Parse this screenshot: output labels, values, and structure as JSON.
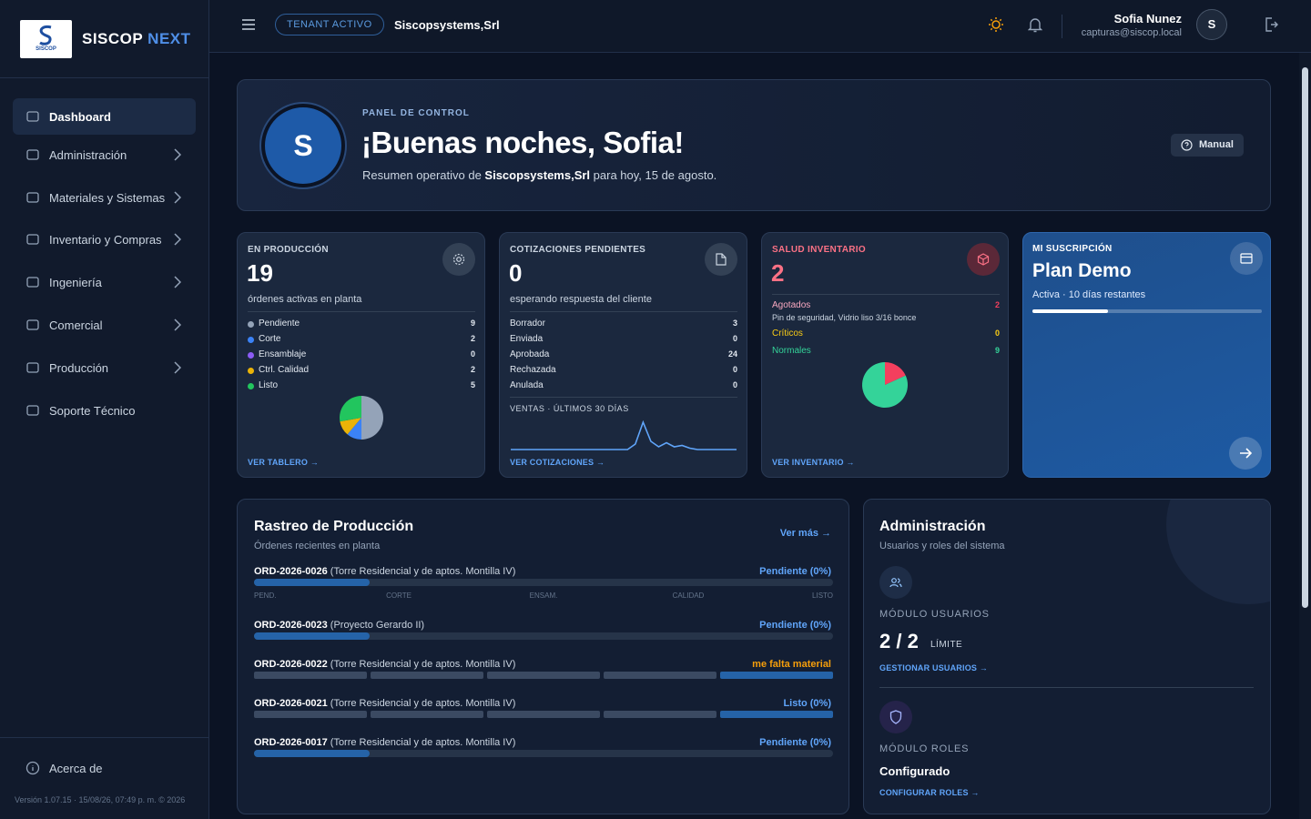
{
  "sidebar": {
    "logo_text": "SISCOP",
    "brand": "SISCOP",
    "brand_accent": "NEXT",
    "nav": [
      "Dashboard",
      "Administración",
      "Materiales y Sistemas",
      "Inventario y Compras",
      "Ingeniería",
      "Comercial",
      "Producción",
      "Soporte Técnico"
    ],
    "about": "Acerca de",
    "version": "Versión 1.07.15 · 15/08/26, 07:49 p. m. © 2026"
  },
  "topbar": {
    "tenant_badge": "TENANT ACTIVO",
    "tenant": "Siscopsystems,Srl",
    "user_name": "Sofia Nunez",
    "user_email": "capturas@siscop.local",
    "avatar": "S"
  },
  "hero": {
    "avatar": "S",
    "eyebrow": "PANEL DE CONTROL",
    "title": "¡Buenas noches, Sofia!",
    "summary_prefix": "Resumen operativo de ",
    "summary_company": "Siscopsystems,Srl",
    "summary_suffix": " para hoy, 15 de agosto.",
    "manual": "Manual"
  },
  "cards": [
    {
      "label": "EN PRODUCCIÓN",
      "value": 19,
      "caption": "órdenes activas en planta",
      "breakdown": [
        {
          "label": "Pendiente",
          "value": 9,
          "color": "#94a3b8"
        },
        {
          "label": "Corte",
          "value": 2,
          "color": "#3b82f6"
        },
        {
          "label": "Ensamblaje",
          "value": 0,
          "color": "#8b5cf6"
        },
        {
          "label": "Ctrl. Calidad",
          "value": 2,
          "color": "#eab308"
        },
        {
          "label": "Listo",
          "value": 5,
          "color": "#22c55e"
        }
      ],
      "link": "VER TABLERO →"
    },
    {
      "label": "COTIZACIONES PENDIENTES",
      "value": 0,
      "caption": "esperando respuesta del cliente",
      "breakdown": [
        {
          "label": "Borrador",
          "value": 3
        },
        {
          "label": "Enviada",
          "value": 0
        },
        {
          "label": "Aprobada",
          "value": 24
        },
        {
          "label": "Rechazada",
          "value": 0
        },
        {
          "label": "Anulada",
          "value": 0
        }
      ],
      "sales_label": "VENTAS · ÚLTIMOS 30 DÍAS",
      "sales_trend": [
        0,
        0,
        0,
        0,
        0,
        0,
        0,
        0,
        0,
        0,
        0,
        0,
        0,
        0,
        0,
        0,
        0.2,
        1,
        0.3,
        0.1,
        0.25,
        0.1,
        0.15,
        0.05,
        0,
        0,
        0,
        0,
        0,
        0
      ],
      "link": "VER COTIZACIONES →"
    },
    {
      "label": "SALUD INVENTARIO",
      "value": 2,
      "breakdown": [
        {
          "label": "Agotados",
          "value": 2,
          "color": "#f43f5e",
          "note": "Pin de seguridad, Vidrio liso 3/16 bonce"
        },
        {
          "label": "Críticos",
          "value": 0,
          "color": "#facc15"
        },
        {
          "label": "Normales",
          "value": 9,
          "color": "#34d399"
        }
      ],
      "link": "VER INVENTARIO →"
    },
    {
      "label": "MI SUSCRIPCIÓN",
      "plan": "Plan Demo",
      "status": "Activa · 10 días restantes",
      "progress": 33
    }
  ],
  "tracking": {
    "title": "Rastreo de Producción",
    "subtitle": "Órdenes recientes en planta",
    "link": "Ver más →",
    "stages": [
      "PEND.",
      "CORTE",
      "ENSAM.",
      "CALIDAD",
      "LISTO"
    ],
    "orders": [
      {
        "code": "ORD-2026-0026",
        "project": "(Torre Residencial y de aptos. Montilla IV)",
        "status": "Pendiente (0%)",
        "color": "#60a5fa"
      },
      {
        "code": "ORD-2026-0023",
        "project": "(Proyecto Gerardo II)",
        "status": "Pendiente (0%)",
        "color": "#60a5fa"
      },
      {
        "code": "ORD-2026-0022",
        "project": "(Torre Residencial y de aptos. Montilla IV)",
        "status": "me falta material",
        "color": "#f59e0b"
      },
      {
        "code": "ORD-2026-0021",
        "project": "(Torre Residencial y de aptos. Montilla IV)",
        "status": "Listo (0%)",
        "color": "#60a5fa"
      },
      {
        "code": "ORD-2026-0017",
        "project": "(Torre Residencial y de aptos. Montilla IV)",
        "status": "Pendiente (0%)",
        "color": "#60a5fa"
      }
    ]
  },
  "admin": {
    "title": "Administración",
    "subtitle": "Usuarios y roles del sistema",
    "users_label": "MÓDULO USUARIOS",
    "users_count": "2 / 2",
    "users_limit": "LÍMITE",
    "users_link": "GESTIONAR USUARIOS →",
    "roles_label": "MÓDULO ROLES",
    "roles_status": "Configurado",
    "roles_link": "CONFIGURAR ROLES →"
  }
}
